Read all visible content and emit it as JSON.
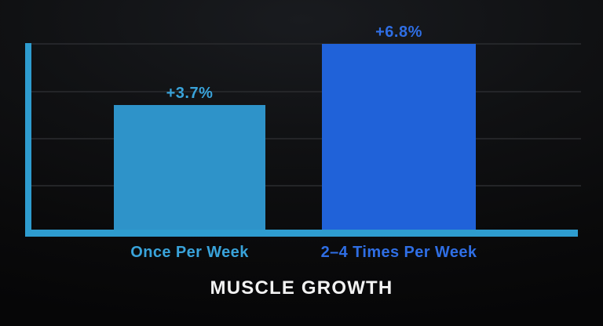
{
  "chart_data": {
    "type": "bar",
    "title": "MUSCLE GROWTH",
    "categories": [
      "Once Per Week",
      "2–4 Times Per Week"
    ],
    "values": [
      3.7,
      6.8
    ],
    "data_labels": [
      "+3.7%",
      "+6.8%"
    ],
    "xlabel": "",
    "ylabel": "",
    "legend": "none",
    "grid": "on",
    "gridline_count": 4,
    "bars": [
      {
        "category": "Once Per Week",
        "value": 3.7,
        "label": "+3.7%",
        "bar_color": "#2e93c9",
        "text_color": "#39a3da"
      },
      {
        "category": "2–4 Times Per Week",
        "value": 6.8,
        "label": "+6.8%",
        "bar_color": "#2062d9",
        "text_color": "#2f6ee4"
      }
    ],
    "colors": {
      "background": "#0a0a0b",
      "axis": "#2e9ccf",
      "gridline": "#27282b",
      "title_text": "#f2f2f2"
    }
  }
}
